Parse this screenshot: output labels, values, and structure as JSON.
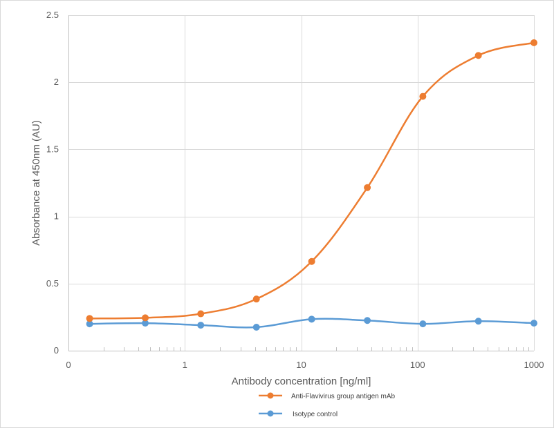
{
  "chart_data": {
    "type": "line",
    "title": "",
    "xlabel": "Antibody concentration [ng/ml]",
    "ylabel": "Absorbance at 450nm (AU)",
    "xscale": "log",
    "xlim": [
      0.1,
      1000
    ],
    "ylim": [
      0,
      2.5
    ],
    "x_tick_labels": [
      "0",
      "1",
      "10",
      "100",
      "1000"
    ],
    "y_ticks": [
      0,
      0.5,
      1,
      1.5,
      2,
      2.5
    ],
    "y_tick_labels": [
      "0",
      "0.5",
      "1",
      "1.5",
      "2",
      "2.5"
    ],
    "grid": true,
    "legend_position": "bottom",
    "x": [
      0.152,
      0.457,
      1.37,
      4.12,
      12.3,
      37.0,
      111,
      333,
      1000
    ],
    "series": [
      {
        "name": "Anti-Flavivirus group antigen mAb",
        "color": "#ED7D31",
        "values": [
          0.24,
          0.245,
          0.275,
          0.385,
          0.665,
          1.215,
          1.895,
          2.2,
          2.295
        ]
      },
      {
        "name": "Isotype control",
        "color": "#5B9BD5",
        "values": [
          0.2,
          0.205,
          0.19,
          0.175,
          0.235,
          0.225,
          0.2,
          0.22,
          0.205
        ]
      }
    ]
  }
}
